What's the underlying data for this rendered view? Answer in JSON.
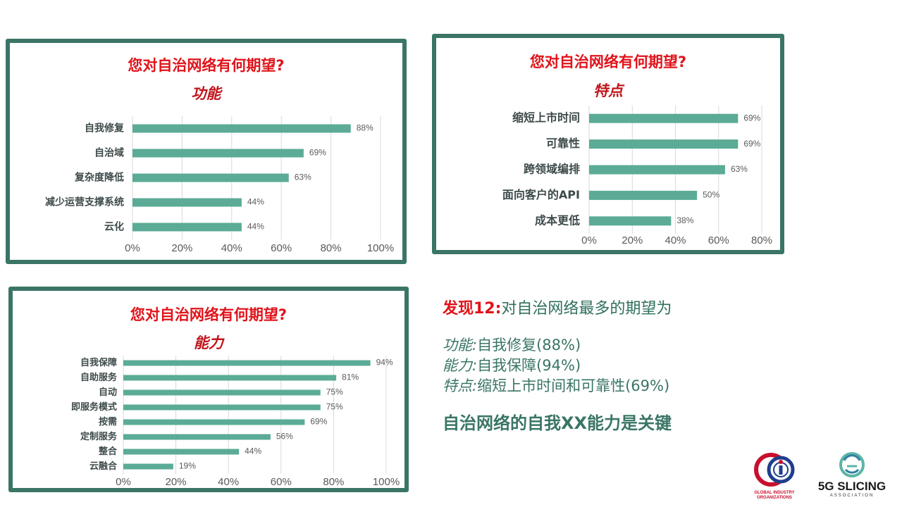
{
  "chart_data": [
    {
      "type": "bar",
      "orientation": "horizontal",
      "title": "您对自治网络有何期望?",
      "subtitle": "功能",
      "categories": [
        "自我修复",
        "自治域",
        "复杂度降低",
        "减少运营支撑系统",
        "云化"
      ],
      "values": [
        88,
        69,
        63,
        44,
        44
      ],
      "value_labels": [
        "88%",
        "69%",
        "63%",
        "44%",
        "44%"
      ],
      "xlim": [
        0,
        100
      ],
      "xticks": [
        "0%",
        "20%",
        "40%",
        "60%",
        "80%",
        "100%"
      ],
      "grid": true,
      "bar_color": "#5bab96"
    },
    {
      "type": "bar",
      "orientation": "horizontal",
      "title": "您对自治网络有何期望?",
      "subtitle": "特点",
      "categories": [
        "缩短上市时间",
        "可靠性",
        "跨领域编排",
        "面向客户的API",
        "成本更低"
      ],
      "values": [
        69,
        69,
        63,
        50,
        38
      ],
      "value_labels": [
        "69%",
        "69%",
        "63%",
        "50%",
        "38%"
      ],
      "xlim": [
        0,
        80
      ],
      "xticks": [
        "0%",
        "20%",
        "40%",
        "60%",
        "80%"
      ],
      "grid": true,
      "bar_color": "#5bab96"
    },
    {
      "type": "bar",
      "orientation": "horizontal",
      "title": "您对自治网络有何期望?",
      "subtitle": "能力",
      "categories": [
        "自我保障",
        "自助服务",
        "自动",
        "即服务模式",
        "按需",
        "定制服务",
        "整合",
        "云融合"
      ],
      "values": [
        94,
        81,
        75,
        75,
        69,
        56,
        44,
        19
      ],
      "value_labels": [
        "94%",
        "81%",
        "75%",
        "75%",
        "69%",
        "56%",
        "44%",
        "19%"
      ],
      "xlim": [
        0,
        100
      ],
      "xticks": [
        "0%",
        "20%",
        "40%",
        "60%",
        "80%",
        "100%"
      ],
      "grid": true,
      "bar_color": "#5bab96"
    }
  ],
  "finding": {
    "label": "发现12:",
    "text": "对自治网络最多的期望为",
    "items": [
      {
        "key": "功能:",
        "value": "自我修复(88%)"
      },
      {
        "key": "能力:",
        "value": "自我保障(94%)"
      },
      {
        "key": "特点:",
        "value": "缩短上市时间和可靠性(69%)"
      }
    ],
    "conclusion": "自治网络的自我XX能力是关键"
  },
  "logos": {
    "gio_text": "GLOBAL INDUSTRY ORGANIZATIONS",
    "slicing_main": "5G SLICING",
    "slicing_sub": "ASSOCIATION"
  },
  "colors": {
    "panel_border": "#3a7566",
    "title_red": "#e0131a",
    "bar": "#5bab96",
    "text_green": "#3a7566"
  }
}
